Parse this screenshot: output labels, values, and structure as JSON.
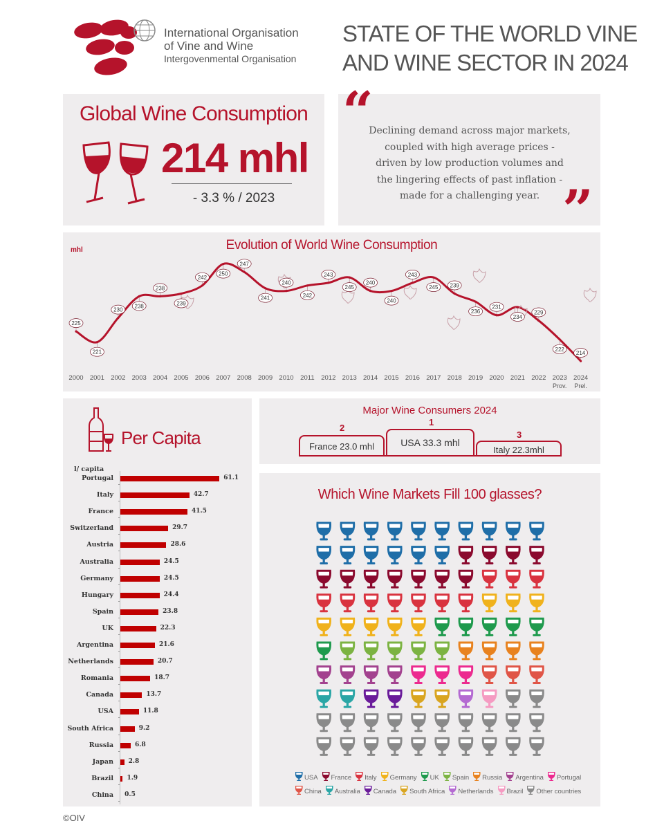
{
  "header": {
    "org_name_line1": "International Organisation",
    "org_name_line2": "of Vine and Wine",
    "org_name_line3": "Intergovenmental Organisation",
    "title_line1": "STATE OF THE WORLD VINE",
    "title_line2": "AND WINE SECTOR IN 2024"
  },
  "colors": {
    "accent": "#b5132b",
    "bar": "#c00000",
    "panel": "#efedee",
    "title_gray": "#555555"
  },
  "global": {
    "heading": "Global Wine Consumption",
    "value": "214 mhl",
    "change": "- 3.3 % / 2023",
    "icon": "wine-glasses-toast-icon"
  },
  "quote": {
    "open_mark": "“",
    "close_mark": "”",
    "lines": [
      "Declining demand across major markets,",
      "coupled with high average prices -",
      "driven by low production volumes and",
      "the lingering effects of past inflation -",
      "made for a challenging year."
    ]
  },
  "evolution": {
    "heading": "Evolution of World Wine Consumption",
    "unit": "mhl",
    "chart_data": {
      "type": "line",
      "x": [
        "2000",
        "2001",
        "2002",
        "2003",
        "2004",
        "2005",
        "2006",
        "2007",
        "2008",
        "2009",
        "2010",
        "2011",
        "2012",
        "2013",
        "2014",
        "2015",
        "2016",
        "2017",
        "2018",
        "2019",
        "2020",
        "2021",
        "2022",
        "2023",
        "2024"
      ],
      "x_sublabels": {
        "2023": "Prov.",
        "2024": "Prel."
      },
      "values": [
        225,
        221,
        230,
        238,
        238,
        239,
        242,
        250,
        247,
        241,
        240,
        242,
        243,
        245,
        240,
        240,
        243,
        245,
        239,
        236,
        231,
        234,
        229,
        222,
        214
      ],
      "ylabel": "mhl",
      "grid": false
    }
  },
  "per_capita": {
    "heading": "Per Capita",
    "unit": "l/ capita",
    "icon": "wine-bottle-glass-icon",
    "chart_data": {
      "type": "bar",
      "orientation": "horizontal",
      "categories": [
        "Portugal",
        "Italy",
        "France",
        "Switzerland",
        "Austria",
        "Australia",
        "Germany",
        "Hungary",
        "Spain",
        "UK",
        "Argentina",
        "Netherlands",
        "Romania",
        "Canada",
        "USA",
        "South Africa",
        "Russia",
        "Japan",
        "Brazil",
        "China"
      ],
      "values": [
        61.1,
        42.7,
        41.5,
        29.7,
        28.6,
        24.5,
        24.5,
        24.4,
        23.8,
        22.3,
        21.6,
        20.7,
        18.7,
        13.7,
        11.8,
        9.2,
        6.8,
        2.8,
        1.9,
        0.5
      ],
      "value_labels": [
        "61.1",
        "42.7",
        "41.5",
        "29.7",
        "28.6",
        "24.5",
        "24.5",
        "24.4",
        "23.8",
        "22.3",
        "21.6",
        "20.7",
        "18.7",
        "13.7",
        "11.8",
        "9.2",
        "6.8",
        "2.8",
        "1.9",
        "0.5"
      ],
      "ylabel": "l/ capita",
      "color": "#c00000"
    }
  },
  "podium": {
    "heading": "Major Wine Consumers 2024",
    "places": [
      {
        "rank": "2",
        "country": "France",
        "value": "23.0 mhl"
      },
      {
        "rank": "1",
        "country": "USA",
        "value": "33.3 mhl"
      },
      {
        "rank": "3",
        "country": "Italy",
        "value": "22.3mhl"
      }
    ]
  },
  "glasses": {
    "heading": "Which Wine Markets Fill 100 glasses?",
    "icon": "wine-glass-icon",
    "chart_data": {
      "type": "pictogram",
      "columns": 10,
      "rows": 10,
      "grid": [
        [
          "USA",
          "USA",
          "USA",
          "USA",
          "USA",
          "USA",
          "USA",
          "USA",
          "USA",
          "USA"
        ],
        [
          "USA",
          "USA",
          "USA",
          "USA",
          "USA",
          "USA",
          "France",
          "France",
          "France",
          "France"
        ],
        [
          "France",
          "France",
          "France",
          "France",
          "France",
          "France",
          "France",
          "Italy",
          "Italy",
          "Italy"
        ],
        [
          "Italy",
          "Italy",
          "Italy",
          "Italy",
          "Italy",
          "Italy",
          "Italy",
          "Germany",
          "Germany",
          "Germany"
        ],
        [
          "Germany",
          "Germany",
          "Germany",
          "Germany",
          "Germany",
          "UK",
          "UK",
          "UK",
          "UK",
          "UK"
        ],
        [
          "UK",
          "Spain",
          "Spain",
          "Spain",
          "Spain",
          "Spain",
          "Russia",
          "Russia",
          "Russia",
          "Russia"
        ],
        [
          "Argentina",
          "Argentina",
          "Argentina",
          "Argentina",
          "Portugal",
          "Portugal",
          "Portugal",
          "China",
          "China",
          "China"
        ],
        [
          "Australia",
          "Australia",
          "Canada",
          "Canada",
          "South Africa",
          "South Africa",
          "Netherlands",
          "Brazil",
          "Other countries",
          "Other countries"
        ],
        [
          "Other countries",
          "Other countries",
          "Other countries",
          "Other countries",
          "Other countries",
          "Other countries",
          "Other countries",
          "Other countries",
          "Other countries",
          "Other countries"
        ],
        [
          "Other countries",
          "Other countries",
          "Other countries",
          "Other countries",
          "Other countries",
          "Other countries",
          "Other countries",
          "Other countries",
          "Other countries",
          "Other countries"
        ]
      ],
      "legend": [
        {
          "name": "USA",
          "color": "#1f6ea8"
        },
        {
          "name": "France",
          "color": "#8b0a2e"
        },
        {
          "name": "Italy",
          "color": "#d9333f"
        },
        {
          "name": "Germany",
          "color": "#f0b21c"
        },
        {
          "name": "UK",
          "color": "#1f9a4d"
        },
        {
          "name": "Spain",
          "color": "#7cb342"
        },
        {
          "name": "Russia",
          "color": "#e8821e"
        },
        {
          "name": "Argentina",
          "color": "#a3428f"
        },
        {
          "name": "Portugal",
          "color": "#ec2a8f"
        },
        {
          "name": "China",
          "color": "#e05547"
        },
        {
          "name": "Australia",
          "color": "#2ba6a6"
        },
        {
          "name": "Canada",
          "color": "#6a1b9a"
        },
        {
          "name": "South Africa",
          "color": "#d9a520"
        },
        {
          "name": "Netherlands",
          "color": "#b46ad2"
        },
        {
          "name": "Brazil",
          "color": "#f59bc2"
        },
        {
          "name": "Other countries",
          "color": "#8a8a8a"
        }
      ]
    }
  },
  "footer": {
    "copyright": "©OIV"
  }
}
